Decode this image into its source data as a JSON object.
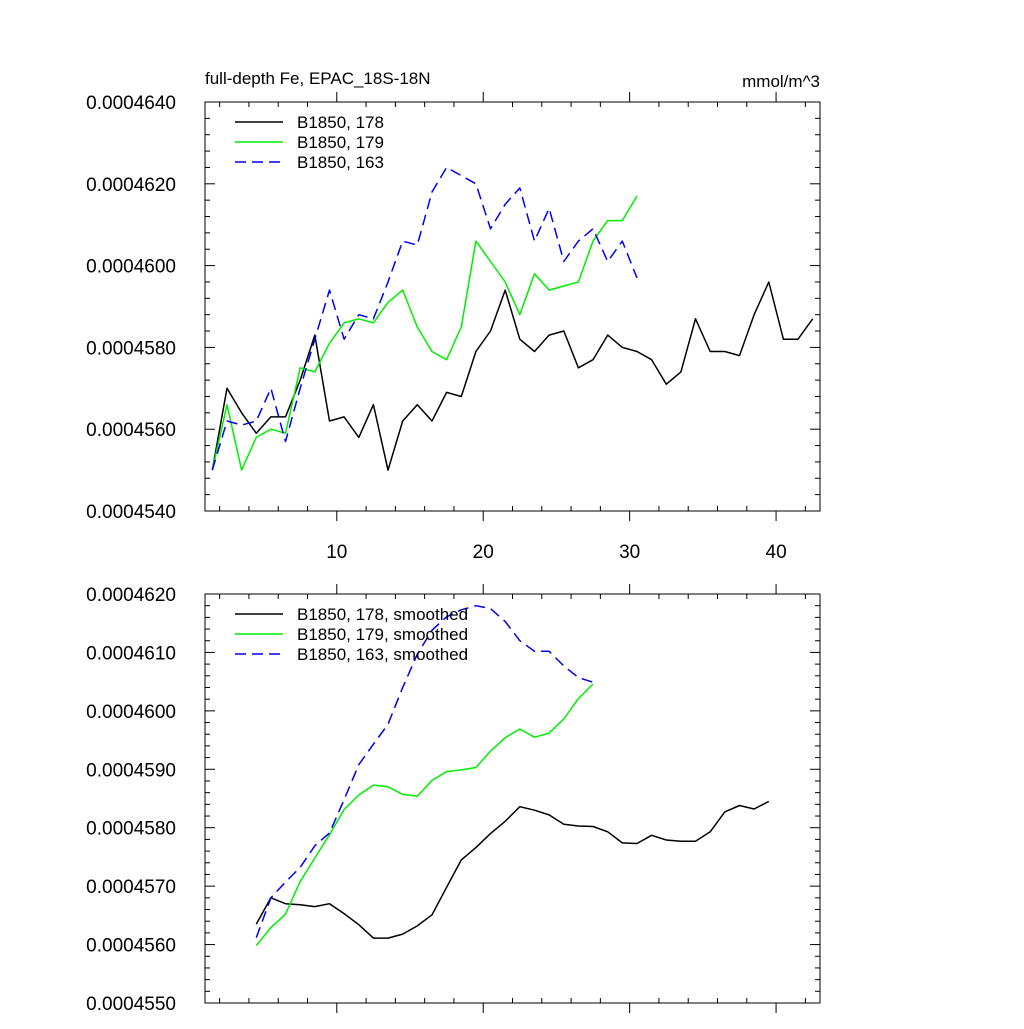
{
  "chart_data": [
    {
      "type": "line",
      "title": "full-depth Fe, EPAC_18S-18N",
      "units": "mmol/m^3",
      "xlabel": "",
      "ylabel": "",
      "xlim": [
        1,
        43
      ],
      "ylim": [
        0.000454,
        0.000464
      ],
      "xticks": [
        10,
        20,
        30,
        40
      ],
      "xtick_labels": [
        "10",
        "20",
        "30",
        "40"
      ],
      "yticks": [
        0.000454,
        0.000456,
        0.000458,
        0.00046,
        0.000462,
        0.000464
      ],
      "ytick_labels": [
        "0.0004540",
        "0.0004560",
        "0.0004580",
        "0.0004600",
        "0.0004620",
        "0.0004640"
      ],
      "legend_position": "top-left",
      "series": [
        {
          "name": "B1850, 178",
          "color": "#000000",
          "style": "solid",
          "x": [
            1.5,
            2.5,
            3.5,
            4.5,
            5.5,
            6.5,
            7.5,
            8.5,
            9.5,
            10.5,
            11.5,
            12.5,
            13.5,
            14.5,
            15.5,
            16.5,
            17.5,
            18.5,
            19.5,
            20.5,
            21.5,
            22.5,
            23.5,
            24.5,
            25.5,
            26.5,
            27.5,
            28.5,
            29.5,
            30.5,
            31.5,
            32.5,
            33.5,
            34.5,
            35.5,
            36.5,
            37.5,
            38.5,
            39.5,
            40.5,
            41.5,
            42.5
          ],
          "y": [
            0.000455,
            0.000457,
            0.0004564,
            0.0004559,
            0.0004563,
            0.0004563,
            0.0004572,
            0.0004583,
            0.0004562,
            0.0004563,
            0.0004558,
            0.0004566,
            0.000455,
            0.0004562,
            0.0004566,
            0.0004562,
            0.0004569,
            0.0004568,
            0.0004579,
            0.0004584,
            0.0004594,
            0.0004582,
            0.0004579,
            0.0004583,
            0.0004584,
            0.0004575,
            0.0004577,
            0.0004583,
            0.000458,
            0.0004579,
            0.0004577,
            0.0004571,
            0.0004574,
            0.0004587,
            0.0004579,
            0.0004579,
            0.0004578,
            0.0004588,
            0.0004596,
            0.0004582,
            0.0004582,
            0.0004587
          ]
        },
        {
          "name": "B1850, 179",
          "color": "#00ee00",
          "style": "solid",
          "x": [
            1.5,
            2.5,
            3.5,
            4.5,
            5.5,
            6.5,
            7.5,
            8.5,
            9.5,
            10.5,
            11.5,
            12.5,
            13.5,
            14.5,
            15.5,
            16.5,
            17.5,
            18.5,
            19.5,
            20.5,
            21.5,
            22.5,
            23.5,
            24.5,
            25.5,
            26.5,
            27.5,
            28.5,
            29.5,
            30.5
          ],
          "y": [
            0.000455,
            0.0004566,
            0.000455,
            0.0004558,
            0.000456,
            0.0004559,
            0.0004575,
            0.0004574,
            0.0004581,
            0.0004586,
            0.0004587,
            0.0004586,
            0.0004591,
            0.0004594,
            0.0004585,
            0.0004579,
            0.0004577,
            0.0004585,
            0.0004606,
            0.0004601,
            0.0004596,
            0.0004588,
            0.0004598,
            0.0004594,
            0.0004595,
            0.0004596,
            0.0004606,
            0.0004611,
            0.0004611,
            0.0004617
          ]
        },
        {
          "name": "B1850, 163",
          "color": "#0000ee",
          "style": "dashed",
          "x": [
            1.5,
            2.5,
            3.5,
            4.5,
            5.5,
            6.5,
            7.5,
            8.5,
            9.5,
            10.5,
            11.5,
            12.5,
            13.5,
            14.5,
            15.5,
            16.5,
            17.5,
            18.5,
            19.5,
            20.5,
            21.5,
            22.5,
            23.5,
            24.5,
            25.5,
            26.5,
            27.5,
            28.5,
            29.5,
            30.5
          ],
          "y": [
            0.000455,
            0.0004562,
            0.0004561,
            0.0004562,
            0.000457,
            0.0004557,
            0.000457,
            0.0004582,
            0.0004594,
            0.0004582,
            0.0004588,
            0.0004587,
            0.0004596,
            0.0004606,
            0.0004605,
            0.0004618,
            0.0004624,
            0.0004622,
            0.000462,
            0.0004609,
            0.0004615,
            0.0004619,
            0.0004606,
            0.0004614,
            0.0004601,
            0.0004606,
            0.0004609,
            0.0004601,
            0.0004606,
            0.0004597
          ]
        }
      ]
    },
    {
      "type": "line",
      "title": "",
      "xlabel": "",
      "ylabel": "",
      "xlim": [
        1,
        43
      ],
      "ylim": [
        0.000455,
        0.000462
      ],
      "xticks": [
        10,
        20,
        30,
        40
      ],
      "yticks": [
        0.000455,
        0.000456,
        0.000457,
        0.000458,
        0.000459,
        0.00046,
        0.000461,
        0.000462
      ],
      "ytick_labels": [
        "0.0004550",
        "0.0004560",
        "0.0004570",
        "0.0004580",
        "0.0004590",
        "0.0004600",
        "0.0004610",
        "0.0004620"
      ],
      "legend_position": "top-left",
      "series": [
        {
          "name": "B1850, 178, smoothed",
          "color": "#000000",
          "style": "solid",
          "x": [
            4.5,
            5.5,
            6.5,
            7.5,
            8.5,
            9.5,
            10.5,
            11.5,
            12.5,
            13.5,
            14.5,
            15.5,
            16.5,
            17.5,
            18.5,
            19.5,
            20.5,
            21.5,
            22.5,
            23.5,
            24.5,
            25.5,
            26.5,
            27.5,
            28.5,
            29.5,
            30.5,
            31.5,
            32.5,
            33.5,
            34.5,
            35.5,
            36.5,
            37.5,
            38.5,
            39.5
          ],
          "y": [
            0.00045635,
            0.0004568,
            0.0004567,
            0.00045668,
            0.00045665,
            0.0004567,
            0.00045653,
            0.00045634,
            0.00045611,
            0.00045611,
            0.00045618,
            0.00045632,
            0.00045651,
            0.00045698,
            0.00045745,
            0.00045766,
            0.0004579,
            0.00045811,
            0.00045836,
            0.0004583,
            0.00045822,
            0.00045806,
            0.00045803,
            0.00045802,
            0.00045793,
            0.00045774,
            0.00045773,
            0.00045787,
            0.00045779,
            0.00045777,
            0.00045777,
            0.00045793,
            0.00045827,
            0.00045838,
            0.00045832,
            0.00045845
          ]
        },
        {
          "name": "B1850, 179, smoothed",
          "color": "#00ee00",
          "style": "solid",
          "x": [
            4.5,
            5.5,
            6.5,
            7.5,
            8.5,
            9.5,
            10.5,
            11.5,
            12.5,
            13.5,
            14.5,
            15.5,
            16.5,
            17.5,
            18.5,
            19.5,
            20.5,
            21.5,
            22.5,
            23.5,
            24.5,
            25.5,
            26.5,
            27.5
          ],
          "y": [
            0.00045598,
            0.00045629,
            0.00045652,
            0.00045708,
            0.00045748,
            0.00045788,
            0.00045831,
            0.00045856,
            0.00045873,
            0.0004587,
            0.00045857,
            0.00045854,
            0.00045881,
            0.00045896,
            0.00045899,
            0.00045903,
            0.00045931,
            0.00045954,
            0.00045969,
            0.00045955,
            0.00045962,
            0.00045986,
            0.00046021,
            0.00046046
          ]
        },
        {
          "name": "B1850, 163, smoothed",
          "color": "#0000ee",
          "style": "dashed",
          "x": [
            4.5,
            5.5,
            6.5,
            7.5,
            8.5,
            9.5,
            10.5,
            11.5,
            12.5,
            13.5,
            14.5,
            15.5,
            16.5,
            17.5,
            18.5,
            19.5,
            20.5,
            21.5,
            22.5,
            23.5,
            24.5,
            25.5,
            26.5,
            27.5
          ],
          "y": [
            0.00045612,
            0.0004568,
            0.00045707,
            0.00045732,
            0.00045769,
            0.00045791,
            0.00045848,
            0.00045908,
            0.00045943,
            0.00045977,
            0.0004604,
            0.00046097,
            0.00046138,
            0.00046161,
            0.00046173,
            0.0004618,
            0.00046175,
            0.00046153,
            0.0004612,
            0.00046102,
            0.00046102,
            0.00046077,
            0.00046057,
            0.00046049
          ]
        }
      ]
    }
  ]
}
